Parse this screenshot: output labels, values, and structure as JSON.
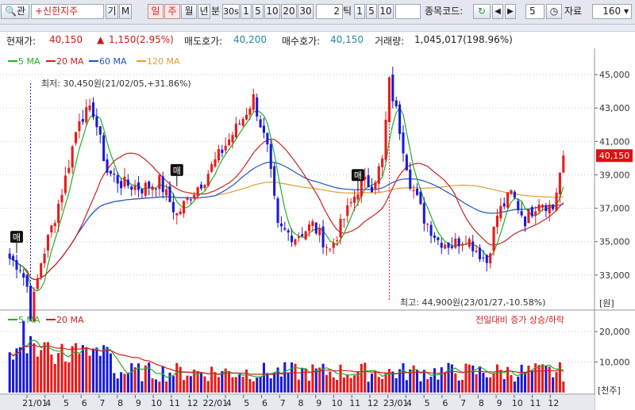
{
  "toolbar": {
    "search_label": "관",
    "stock_name": "+신한지주",
    "gi_label": "기",
    "m_label": "M",
    "periods": [
      "일",
      "주",
      "월",
      "년"
    ],
    "active_period": "주",
    "bun_label": "분",
    "minute_value": "30s",
    "minute_buttons": [
      "1",
      "5",
      "10",
      "20",
      "30"
    ],
    "tick_value": "2",
    "tick_label": "틱",
    "tick_buttons": [
      "1",
      "5",
      "10"
    ],
    "code_label": "종목코드:",
    "step_value": "5",
    "data_label": "자료",
    "data_count": "160"
  },
  "info": {
    "current_label": "현재가:",
    "current_value": "40,150",
    "change_value": "1,150(2.95%)",
    "ask_label": "매도호가:",
    "ask_value": "40,200",
    "bid_label": "매수호가:",
    "bid_value": "40,150",
    "volume_label": "거래량:",
    "volume_value": "1,045,017(198.96%)"
  },
  "colors": {
    "up": "#e81a1a",
    "down": "#1a1ad6",
    "ma5": "#22b022",
    "ma20": "#cc2222",
    "ma60": "#1e55c8",
    "ma120": "#e0a030",
    "price_tag": "#e01010"
  },
  "chart_data": {
    "type": "candlestick",
    "legend": [
      "5 MA",
      "20 MA",
      "60 MA",
      "120 MA"
    ],
    "y_ticks": [
      33000,
      35000,
      37000,
      39000,
      41000,
      43000,
      45000
    ],
    "y_tick_labels": [
      "33,000",
      "35,000",
      "37,000",
      "39,000",
      "41,000",
      "43,000",
      "45,000"
    ],
    "y_unit": "[원]",
    "ylim": [
      31000,
      46000
    ],
    "current_price": 40150,
    "current_price_label": "40,150",
    "annotation_low": "최저: 30,450원(21/02/05,+31.86%)",
    "annotation_high": "최고: 44,900원(23/01/27,-10.58%)",
    "low_point": {
      "x": "21/02/05",
      "y": 30450
    },
    "high_point": {
      "x": "23/01/27",
      "y": 44900
    },
    "buy_markers": [
      {
        "label": "매",
        "x": "21/01",
        "y": 34600
      },
      {
        "label": "매",
        "x": "21/12",
        "y": 38600
      },
      {
        "label": "매",
        "x": "22/12",
        "y": 38300
      }
    ],
    "x_labels": [
      "21/01",
      "4",
      "5",
      "6",
      "7",
      "8",
      "9",
      "10",
      "11",
      "12",
      "22/01",
      "4",
      "5",
      "6",
      "7",
      "8",
      "9",
      "10",
      "11",
      "12",
      "23/01",
      "4",
      "5",
      "6",
      "7",
      "8",
      "9",
      "10",
      "11",
      "12"
    ],
    "volume": {
      "legend": [
        "5 MA",
        "20 MA"
      ],
      "note": "전일대비 증가 상승/하락",
      "y_ticks": [
        10000,
        20000
      ],
      "y_tick_labels": [
        "10,000",
        "20,000"
      ],
      "y_unit": "[천주]",
      "ylim": [
        0,
        26000
      ]
    }
  }
}
